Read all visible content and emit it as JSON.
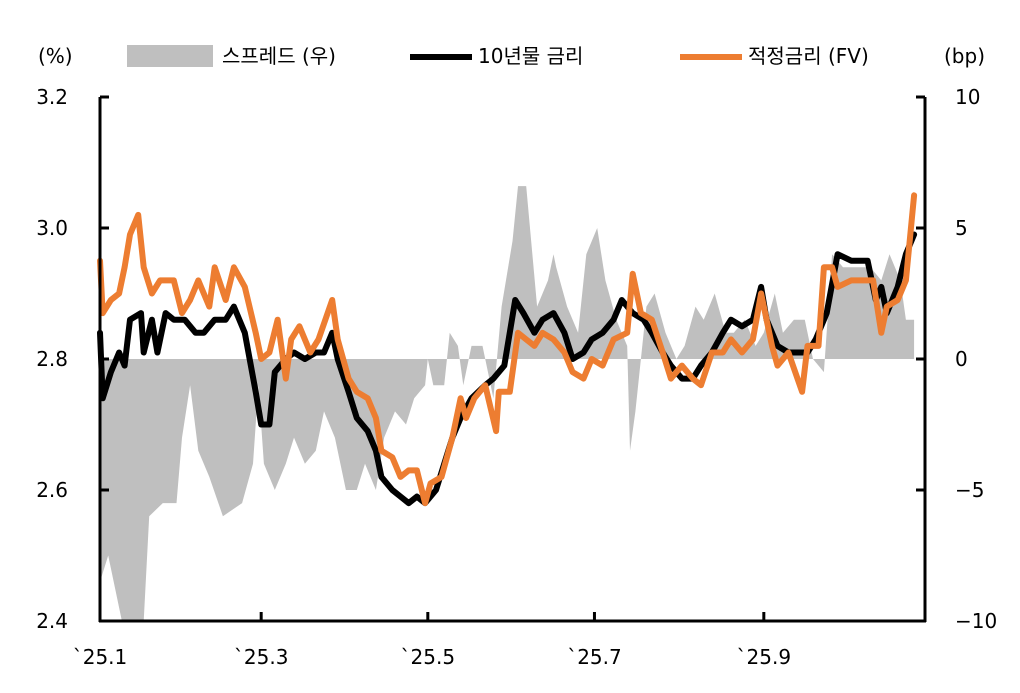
{
  "chart_data": {
    "type": "line",
    "left_axis": {
      "label": "(%)",
      "range": [
        2.4,
        3.2
      ],
      "ticks": [
        "2.4",
        "2.6",
        "2.8",
        "3.0",
        "3.2"
      ]
    },
    "right_axis": {
      "label": "(bp)",
      "range": [
        -10,
        10
      ],
      "ticks": [
        "−10",
        "−5",
        "0",
        "5",
        "10"
      ]
    },
    "x_axis": {
      "ticks": [
        {
          "date": "2025-01-01",
          "label": "`25.1"
        },
        {
          "date": "2025-03-01",
          "label": "`25.3"
        },
        {
          "date": "2025-05-01",
          "label": "`25.5"
        },
        {
          "date": "2025-07-01",
          "label": "`25.7"
        },
        {
          "date": "2025-09-01",
          "label": "`25.9"
        }
      ],
      "range": [
        "2025-01-01",
        "2025-10-30"
      ]
    },
    "grid": false,
    "legend_position": "top",
    "series": [
      {
        "name": "스프레드 (우)",
        "type": "area",
        "axis": "right",
        "color": "#bfbfbf",
        "points": [
          [
            "01-01",
            -8.5
          ],
          [
            "01-04",
            -7.5
          ],
          [
            "01-09",
            -10
          ],
          [
            "01-17",
            -10
          ],
          [
            "01-19",
            -6
          ],
          [
            "01-24",
            -5.5
          ],
          [
            "01-29",
            -5.5
          ],
          [
            "01-31",
            -3
          ],
          [
            "02-03",
            -1
          ],
          [
            "02-06",
            -3.5
          ],
          [
            "02-10",
            -4.5
          ],
          [
            "02-15",
            -6
          ],
          [
            "02-22",
            -5.5
          ],
          [
            "02-26",
            -4
          ],
          [
            "02-28",
            -1
          ],
          [
            "03-02",
            -4
          ],
          [
            "03-06",
            -5
          ],
          [
            "03-10",
            -4
          ],
          [
            "03-13",
            -3
          ],
          [
            "03-17",
            -4
          ],
          [
            "03-21",
            -3.5
          ],
          [
            "03-24",
            -2
          ],
          [
            "03-28",
            -3
          ],
          [
            "04-01",
            -5
          ],
          [
            "04-05",
            -5
          ],
          [
            "04-08",
            -4
          ],
          [
            "04-12",
            -5
          ],
          [
            "04-15",
            -3
          ],
          [
            "04-19",
            -2
          ],
          [
            "04-23",
            -2.5
          ],
          [
            "04-26",
            -1.5
          ],
          [
            "04-30",
            -1
          ],
          [
            "05-01",
            0
          ],
          [
            "05-03",
            -1
          ],
          [
            "05-07",
            -1
          ],
          [
            "05-09",
            1
          ],
          [
            "05-12",
            0.5
          ],
          [
            "05-14",
            -1
          ],
          [
            "05-17",
            0.5
          ],
          [
            "05-21",
            0.5
          ],
          [
            "05-25",
            -1.5
          ],
          [
            "05-28",
            2
          ],
          [
            "06-01",
            4.5
          ],
          [
            "06-03",
            6.6
          ],
          [
            "06-06",
            6.6
          ],
          [
            "06-10",
            2
          ],
          [
            "06-14",
            3
          ],
          [
            "06-16",
            4
          ],
          [
            "06-17",
            3.5
          ],
          [
            "06-21",
            2
          ],
          [
            "06-25",
            1
          ],
          [
            "06-28",
            4
          ],
          [
            "07-02",
            5
          ],
          [
            "07-05",
            3
          ],
          [
            "07-09",
            1.5
          ],
          [
            "07-13",
            0.5
          ],
          [
            "07-14",
            -3.5
          ],
          [
            "07-16",
            -2
          ],
          [
            "07-20",
            2
          ],
          [
            "07-23",
            2.5
          ],
          [
            "07-27",
            1
          ],
          [
            "07-31",
            0
          ],
          [
            "08-03",
            0.5
          ],
          [
            "08-07",
            2
          ],
          [
            "08-10",
            1.5
          ],
          [
            "08-14",
            2.5
          ],
          [
            "08-18",
            1
          ],
          [
            "08-21",
            1
          ],
          [
            "08-25",
            1.5
          ],
          [
            "08-29",
            0.5
          ],
          [
            "09-01",
            1
          ],
          [
            "09-05",
            2.5
          ],
          [
            "09-08",
            1
          ],
          [
            "09-12",
            1.5
          ],
          [
            "09-16",
            1.5
          ],
          [
            "09-19",
            0
          ],
          [
            "09-23",
            -0.5
          ],
          [
            "09-26",
            4
          ],
          [
            "09-30",
            3.5
          ],
          [
            "10-10",
            3.5
          ],
          [
            "10-14",
            3
          ],
          [
            "10-17",
            4
          ],
          [
            "10-21",
            3
          ],
          [
            "10-23",
            1.5
          ],
          [
            "10-26",
            1.5
          ]
        ]
      },
      {
        "name": "10년물 금리",
        "type": "line",
        "axis": "left",
        "color": "#000000",
        "points": [
          [
            "01-01",
            2.84
          ],
          [
            "01-02",
            2.74
          ],
          [
            "01-05",
            2.78
          ],
          [
            "01-08",
            2.81
          ],
          [
            "01-10",
            2.79
          ],
          [
            "01-12",
            2.86
          ],
          [
            "01-16",
            2.87
          ],
          [
            "01-17",
            2.81
          ],
          [
            "01-20",
            2.86
          ],
          [
            "01-22",
            2.81
          ],
          [
            "01-25",
            2.87
          ],
          [
            "01-28",
            2.86
          ],
          [
            "02-01",
            2.86
          ],
          [
            "02-05",
            2.84
          ],
          [
            "02-08",
            2.84
          ],
          [
            "02-12",
            2.86
          ],
          [
            "02-16",
            2.86
          ],
          [
            "02-19",
            2.88
          ],
          [
            "02-23",
            2.84
          ],
          [
            "02-27",
            2.75
          ],
          [
            "03-01",
            2.7
          ],
          [
            "03-04",
            2.7
          ],
          [
            "03-06",
            2.78
          ],
          [
            "03-10",
            2.8
          ],
          [
            "03-13",
            2.81
          ],
          [
            "03-17",
            2.8
          ],
          [
            "03-21",
            2.81
          ],
          [
            "03-24",
            2.81
          ],
          [
            "03-27",
            2.84
          ],
          [
            "03-29",
            2.8
          ],
          [
            "04-02",
            2.75
          ],
          [
            "04-05",
            2.71
          ],
          [
            "04-09",
            2.69
          ],
          [
            "04-12",
            2.66
          ],
          [
            "04-14",
            2.62
          ],
          [
            "04-18",
            2.6
          ],
          [
            "04-21",
            2.59
          ],
          [
            "04-24",
            2.58
          ],
          [
            "04-27",
            2.59
          ],
          [
            "04-30",
            2.58
          ],
          [
            "05-04",
            2.6
          ],
          [
            "05-10",
            2.68
          ],
          [
            "05-13",
            2.71
          ],
          [
            "05-17",
            2.74
          ],
          [
            "05-22",
            2.76
          ],
          [
            "05-25",
            2.77
          ],
          [
            "05-29",
            2.79
          ],
          [
            "06-02",
            2.89
          ],
          [
            "06-05",
            2.87
          ],
          [
            "06-09",
            2.84
          ],
          [
            "06-12",
            2.86
          ],
          [
            "06-16",
            2.87
          ],
          [
            "06-20",
            2.84
          ],
          [
            "06-23",
            2.8
          ],
          [
            "06-27",
            2.81
          ],
          [
            "06-30",
            2.83
          ],
          [
            "07-04",
            2.84
          ],
          [
            "07-08",
            2.86
          ],
          [
            "07-11",
            2.89
          ],
          [
            "07-15",
            2.87
          ],
          [
            "07-19",
            2.86
          ],
          [
            "07-22",
            2.84
          ],
          [
            "07-26",
            2.81
          ],
          [
            "07-29",
            2.79
          ],
          [
            "08-02",
            2.77
          ],
          [
            "08-06",
            2.77
          ],
          [
            "08-09",
            2.79
          ],
          [
            "08-13",
            2.81
          ],
          [
            "08-17",
            2.84
          ],
          [
            "08-20",
            2.86
          ],
          [
            "08-24",
            2.85
          ],
          [
            "08-28",
            2.86
          ],
          [
            "08-31",
            2.91
          ],
          [
            "09-02",
            2.86
          ],
          [
            "09-06",
            2.82
          ],
          [
            "09-10",
            2.81
          ],
          [
            "09-13",
            2.81
          ],
          [
            "09-17",
            2.81
          ],
          [
            "09-20",
            2.83
          ],
          [
            "09-24",
            2.87
          ],
          [
            "09-28",
            2.96
          ],
          [
            "10-03",
            2.95
          ],
          [
            "10-09",
            2.95
          ],
          [
            "10-12",
            2.89
          ],
          [
            "10-14",
            2.91
          ],
          [
            "10-16",
            2.87
          ],
          [
            "10-20",
            2.91
          ],
          [
            "10-23",
            2.96
          ],
          [
            "10-26",
            2.99
          ]
        ]
      },
      {
        "name": "적정금리 (FV)",
        "type": "line",
        "axis": "left",
        "color": "#ed7d31",
        "points": [
          [
            "01-01",
            2.95
          ],
          [
            "01-02",
            2.87
          ],
          [
            "01-05",
            2.89
          ],
          [
            "01-08",
            2.9
          ],
          [
            "01-10",
            2.94
          ],
          [
            "01-12",
            2.99
          ],
          [
            "01-15",
            3.02
          ],
          [
            "01-17",
            2.94
          ],
          [
            "01-20",
            2.9
          ],
          [
            "01-23",
            2.92
          ],
          [
            "01-28",
            2.92
          ],
          [
            "01-31",
            2.87
          ],
          [
            "02-03",
            2.89
          ],
          [
            "02-06",
            2.92
          ],
          [
            "02-10",
            2.88
          ],
          [
            "02-12",
            2.94
          ],
          [
            "02-16",
            2.89
          ],
          [
            "02-19",
            2.94
          ],
          [
            "02-23",
            2.91
          ],
          [
            "02-27",
            2.84
          ],
          [
            "03-01",
            2.8
          ],
          [
            "03-04",
            2.81
          ],
          [
            "03-07",
            2.86
          ],
          [
            "03-10",
            2.77
          ],
          [
            "03-12",
            2.83
          ],
          [
            "03-15",
            2.85
          ],
          [
            "03-19",
            2.81
          ],
          [
            "03-22",
            2.83
          ],
          [
            "03-27",
            2.89
          ],
          [
            "03-29",
            2.83
          ],
          [
            "04-02",
            2.77
          ],
          [
            "04-05",
            2.75
          ],
          [
            "04-09",
            2.74
          ],
          [
            "04-12",
            2.71
          ],
          [
            "04-14",
            2.66
          ],
          [
            "04-18",
            2.65
          ],
          [
            "04-21",
            2.62
          ],
          [
            "04-24",
            2.63
          ],
          [
            "04-27",
            2.63
          ],
          [
            "04-30",
            2.58
          ],
          [
            "05-02",
            2.61
          ],
          [
            "05-06",
            2.62
          ],
          [
            "05-10",
            2.68
          ],
          [
            "05-13",
            2.74
          ],
          [
            "05-15",
            2.71
          ],
          [
            "05-18",
            2.74
          ],
          [
            "05-22",
            2.76
          ],
          [
            "05-26",
            2.69
          ],
          [
            "05-27",
            2.75
          ],
          [
            "05-31",
            2.75
          ],
          [
            "06-03",
            2.84
          ],
          [
            "06-06",
            2.83
          ],
          [
            "06-09",
            2.82
          ],
          [
            "06-12",
            2.84
          ],
          [
            "06-16",
            2.83
          ],
          [
            "06-20",
            2.81
          ],
          [
            "06-23",
            2.78
          ],
          [
            "06-27",
            2.77
          ],
          [
            "06-30",
            2.8
          ],
          [
            "07-04",
            2.79
          ],
          [
            "07-08",
            2.83
          ],
          [
            "07-13",
            2.84
          ],
          [
            "07-15",
            2.93
          ],
          [
            "07-18",
            2.87
          ],
          [
            "07-22",
            2.86
          ],
          [
            "07-26",
            2.81
          ],
          [
            "07-29",
            2.77
          ],
          [
            "08-02",
            2.79
          ],
          [
            "08-06",
            2.77
          ],
          [
            "08-09",
            2.76
          ],
          [
            "08-13",
            2.81
          ],
          [
            "08-17",
            2.81
          ],
          [
            "08-20",
            2.83
          ],
          [
            "08-24",
            2.81
          ],
          [
            "08-28",
            2.83
          ],
          [
            "08-31",
            2.9
          ],
          [
            "09-04",
            2.82
          ],
          [
            "09-06",
            2.79
          ],
          [
            "09-10",
            2.81
          ],
          [
            "09-15",
            2.75
          ],
          [
            "09-17",
            2.82
          ],
          [
            "09-21",
            2.82
          ],
          [
            "09-23",
            2.94
          ],
          [
            "09-26",
            2.94
          ],
          [
            "09-28",
            2.91
          ],
          [
            "10-03",
            2.92
          ],
          [
            "10-11",
            2.92
          ],
          [
            "10-14",
            2.84
          ],
          [
            "10-16",
            2.88
          ],
          [
            "10-20",
            2.89
          ],
          [
            "10-23",
            2.92
          ],
          [
            "10-26",
            3.05
          ]
        ]
      }
    ]
  }
}
